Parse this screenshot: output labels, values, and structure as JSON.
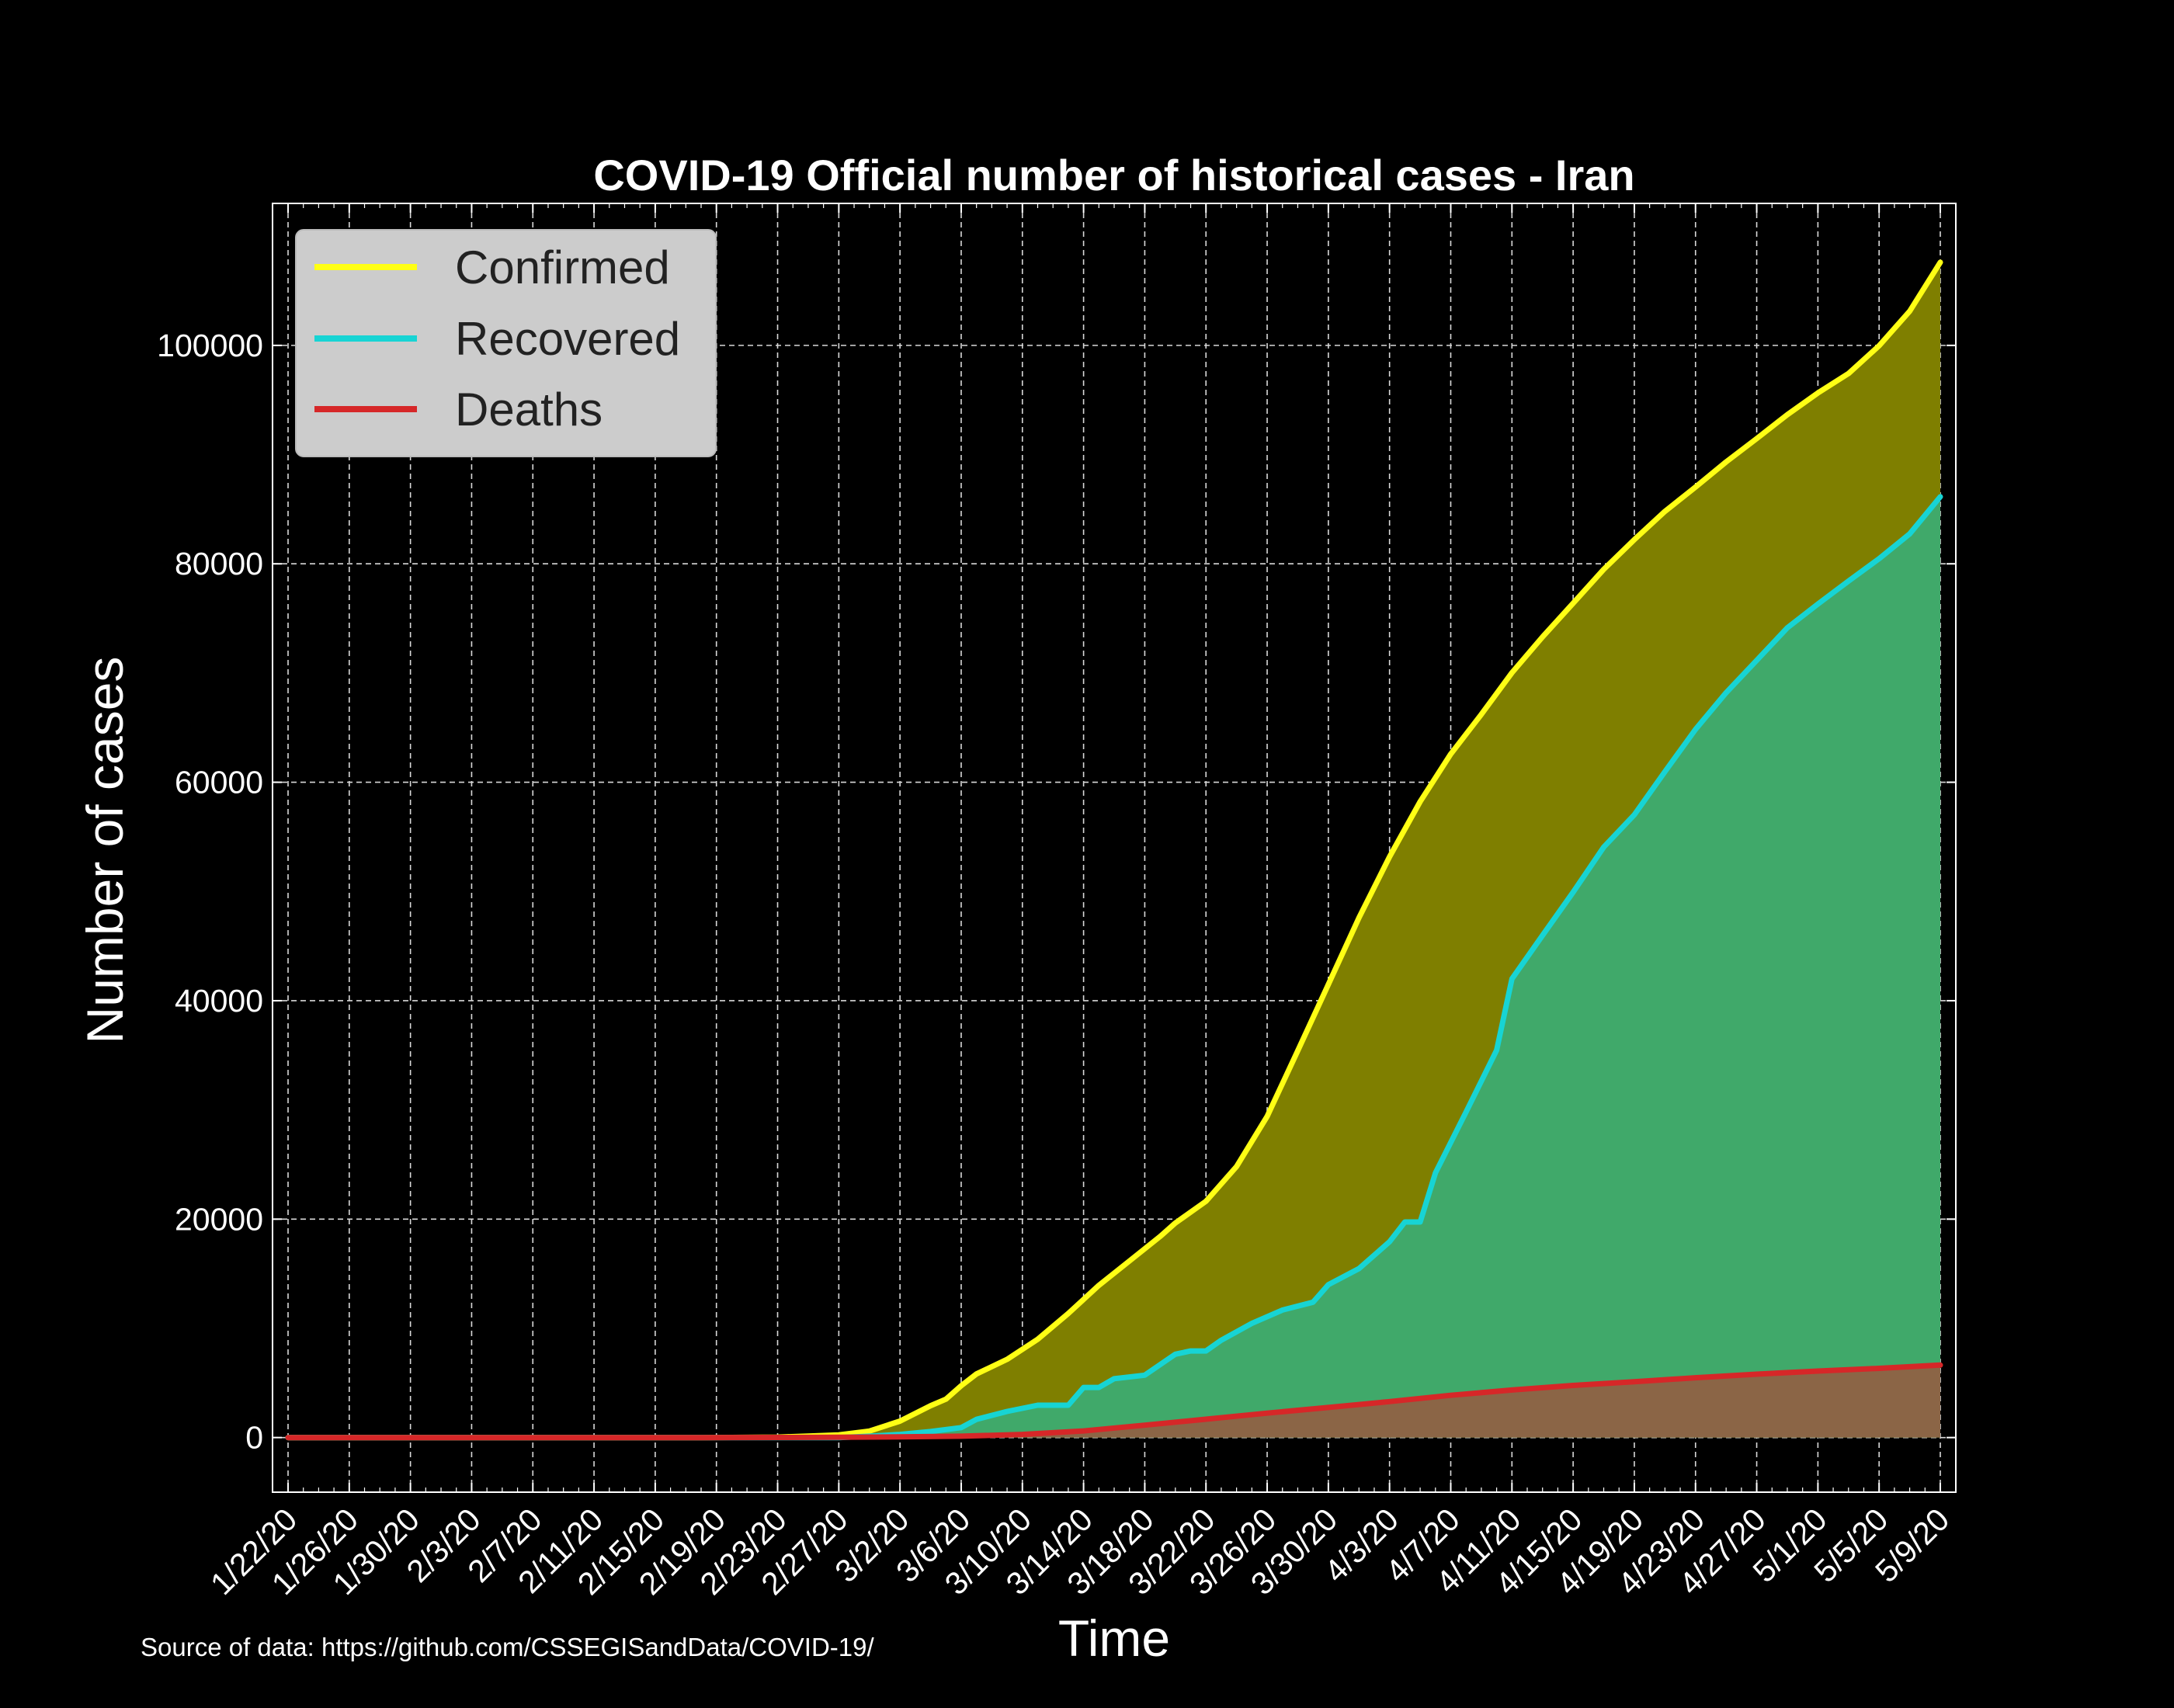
{
  "chart_data": {
    "type": "area",
    "title": "COVID-19 Official number of historical cases - Iran",
    "xlabel": "Time",
    "ylabel": "Number of cases",
    "source_note": "Source of data: https://github.com/CSSEGISandData/COVID-19/",
    "start_date": "1/22/20",
    "end_date": "5/9/20",
    "x_tick_labels": [
      "1/22/20",
      "1/26/20",
      "1/30/20",
      "2/3/20",
      "2/7/20",
      "2/11/20",
      "2/15/20",
      "2/19/20",
      "2/23/20",
      "2/27/20",
      "3/2/20",
      "3/6/20",
      "3/10/20",
      "3/14/20",
      "3/18/20",
      "3/22/20",
      "3/26/20",
      "3/30/20",
      "4/3/20",
      "4/7/20",
      "4/11/20",
      "4/15/20",
      "4/19/20",
      "4/23/20",
      "4/27/20",
      "5/1/20",
      "5/5/20",
      "5/9/20"
    ],
    "y_ticks": [
      0,
      20000,
      40000,
      60000,
      80000,
      100000
    ],
    "ylim": [
      -5000,
      113000
    ],
    "grid": true,
    "legend_position": "top-left",
    "series": [
      {
        "name": "Confirmed",
        "color": "#ffff14",
        "fill": "#7f7f00",
        "points": [
          [
            "1/22/20",
            0
          ],
          [
            "2/18/20",
            0
          ],
          [
            "2/19/20",
            2
          ],
          [
            "2/21/20",
            18
          ],
          [
            "2/23/20",
            43
          ],
          [
            "2/25/20",
            139
          ],
          [
            "2/27/20",
            245
          ],
          [
            "2/29/20",
            593
          ],
          [
            "3/2/20",
            1501
          ],
          [
            "3/4/20",
            2922
          ],
          [
            "3/5/20",
            3513
          ],
          [
            "3/6/20",
            4747
          ],
          [
            "3/7/20",
            5823
          ],
          [
            "3/9/20",
            7161
          ],
          [
            "3/11/20",
            9000
          ],
          [
            "3/13/20",
            11364
          ],
          [
            "3/15/20",
            13938
          ],
          [
            "3/17/20",
            16169
          ],
          [
            "3/19/20",
            18407
          ],
          [
            "3/20/20",
            19644
          ],
          [
            "3/22/20",
            21638
          ],
          [
            "3/24/20",
            24811
          ],
          [
            "3/26/20",
            29406
          ],
          [
            "3/28/20",
            35408
          ],
          [
            "3/30/20",
            41495
          ],
          [
            "4/1/20",
            47593
          ],
          [
            "4/3/20",
            53183
          ],
          [
            "4/5/20",
            58226
          ],
          [
            "4/7/20",
            62589
          ],
          [
            "4/9/20",
            66220
          ],
          [
            "4/11/20",
            70029
          ],
          [
            "4/13/20",
            73303
          ],
          [
            "4/15/20",
            76389
          ],
          [
            "4/17/20",
            79494
          ],
          [
            "4/19/20",
            82211
          ],
          [
            "4/21/20",
            84802
          ],
          [
            "4/23/20",
            87026
          ],
          [
            "4/25/20",
            89328
          ],
          [
            "4/27/20",
            91472
          ],
          [
            "4/29/20",
            93657
          ],
          [
            "5/1/20",
            95646
          ],
          [
            "5/3/20",
            97424
          ],
          [
            "5/5/20",
            99970
          ],
          [
            "5/7/20",
            103135
          ],
          [
            "5/9/20",
            107603
          ]
        ]
      },
      {
        "name": "Recovered",
        "color": "#17d4d4",
        "fill": "#40a96a",
        "points": [
          [
            "1/22/20",
            0
          ],
          [
            "2/27/20",
            0
          ],
          [
            "2/29/20",
            123
          ],
          [
            "3/2/20",
            291
          ],
          [
            "3/4/20",
            552
          ],
          [
            "3/6/20",
            913
          ],
          [
            "3/7/20",
            1669
          ],
          [
            "3/9/20",
            2394
          ],
          [
            "3/11/20",
            2959
          ],
          [
            "3/13/20",
            2959
          ],
          [
            "3/14/20",
            4590
          ],
          [
            "3/15/20",
            4590
          ],
          [
            "3/16/20",
            5389
          ],
          [
            "3/18/20",
            5710
          ],
          [
            "3/20/20",
            7635
          ],
          [
            "3/21/20",
            7931
          ],
          [
            "3/22/20",
            7931
          ],
          [
            "3/23/20",
            8913
          ],
          [
            "3/25/20",
            10457
          ],
          [
            "3/27/20",
            11679
          ],
          [
            "3/29/20",
            12391
          ],
          [
            "3/30/20",
            14000
          ],
          [
            "4/1/20",
            15473
          ],
          [
            "4/3/20",
            17935
          ],
          [
            "4/4/20",
            19736
          ],
          [
            "4/5/20",
            19736
          ],
          [
            "4/6/20",
            24236
          ],
          [
            "4/8/20",
            29812
          ],
          [
            "4/10/20",
            35465
          ],
          [
            "4/11/20",
            42000
          ],
          [
            "4/13/20",
            45983
          ],
          [
            "4/15/20",
            49933
          ],
          [
            "4/17/20",
            54064
          ],
          [
            "4/19/20",
            57023
          ],
          [
            "4/21/20",
            60965
          ],
          [
            "4/23/20",
            64843
          ],
          [
            "4/25/20",
            68193
          ],
          [
            "4/27/20",
            71166
          ],
          [
            "4/29/20",
            74144
          ],
          [
            "5/1/20",
            76318
          ],
          [
            "5/3/20",
            78422
          ],
          [
            "5/5/20",
            80475
          ],
          [
            "5/7/20",
            82744
          ],
          [
            "5/9/20",
            86143
          ]
        ]
      },
      {
        "name": "Deaths",
        "color": "#d62728",
        "fill": "#8b6546",
        "points": [
          [
            "1/22/20",
            0
          ],
          [
            "2/18/20",
            0
          ],
          [
            "2/20/20",
            2
          ],
          [
            "2/23/20",
            8
          ],
          [
            "2/27/20",
            26
          ],
          [
            "3/2/20",
            66
          ],
          [
            "3/6/20",
            124
          ],
          [
            "3/10/20",
            291
          ],
          [
            "3/14/20",
            611
          ],
          [
            "3/18/20",
            1135
          ],
          [
            "3/22/20",
            1685
          ],
          [
            "3/26/20",
            2234
          ],
          [
            "3/30/20",
            2757
          ],
          [
            "4/3/20",
            3294
          ],
          [
            "4/7/20",
            3872
          ],
          [
            "4/11/20",
            4357
          ],
          [
            "4/15/20",
            4777
          ],
          [
            "4/19/20",
            5118
          ],
          [
            "4/23/20",
            5481
          ],
          [
            "4/27/20",
            5806
          ],
          [
            "5/1/20",
            6091
          ],
          [
            "5/5/20",
            6340
          ],
          [
            "5/9/20",
            6640
          ]
        ]
      }
    ]
  }
}
